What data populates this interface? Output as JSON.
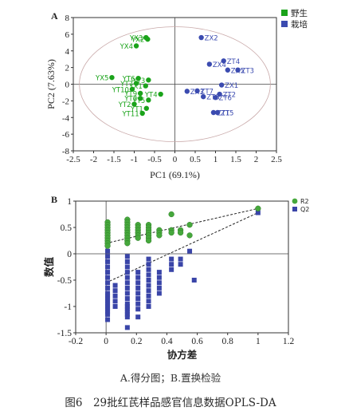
{
  "caption": {
    "sub": "A.得分图；B.置换检验",
    "main": "图6　29批红芪样品感官信息数据OPLS-DA"
  },
  "colors": {
    "wild": "#1aa31a",
    "cultivated": "#3b4bb0",
    "r2": "#46a83c",
    "q2": "#3a45a8",
    "ellipse": "#c9a9a9"
  },
  "chart_data": [
    {
      "type": "scatter",
      "panel_label": "A",
      "title": "",
      "xlabel": "PC1 (69.1%)",
      "ylabel": "PC2 (7.63%)",
      "xlim": [
        -2.5,
        2.5
      ],
      "ylim": [
        -8,
        8
      ],
      "xticks": [
        -2.5,
        -2,
        -1.5,
        -1,
        -0.5,
        0,
        0.5,
        1,
        1.5,
        2,
        2.5
      ],
      "xtick_labels": [
        "-2.5",
        "-2",
        "-1.5",
        "-1",
        "-0.5",
        "0",
        "0.5",
        "1",
        "1.5",
        "2",
        "2.5"
      ],
      "yticks": [
        -8,
        -6,
        -4,
        -2,
        0,
        2,
        4,
        6,
        8
      ],
      "ytick_labels": [
        "-8",
        "-6",
        "-4",
        "-2",
        "0",
        "2",
        "4",
        "6",
        "8"
      ],
      "legend_position": "top-right",
      "series": [
        {
          "name": "野生",
          "marker": "square",
          "points": [
            {
              "label": "YX3",
              "x": -0.71,
              "y": 5.6
            },
            {
              "label": "YX2",
              "x": -0.67,
              "y": 5.4
            },
            {
              "label": "YX4",
              "x": -0.95,
              "y": 4.6
            },
            {
              "label": "YX5",
              "x": -1.55,
              "y": 0.8
            },
            {
              "label": "YT6",
              "x": -0.9,
              "y": 0.7
            },
            {
              "label": "YT3",
              "x": -0.65,
              "y": 0.5
            },
            {
              "label": "YT7",
              "x": -0.95,
              "y": 0.1
            },
            {
              "label": "YX1",
              "x": -0.72,
              "y": -0.2
            },
            {
              "label": "YT10",
              "x": -1.05,
              "y": -0.6
            },
            {
              "label": "YT9",
              "x": -0.85,
              "y": -1.1
            },
            {
              "label": "YT4",
              "x": -0.35,
              "y": -1.2
            },
            {
              "label": "YT8",
              "x": -0.85,
              "y": -1.7
            },
            {
              "label": "YT5",
              "x": -0.65,
              "y": -1.9
            },
            {
              "label": "YT2",
              "x": -1.0,
              "y": -2.4
            },
            {
              "label": "YT1",
              "x": -0.7,
              "y": -2.9
            },
            {
              "label": "YT11",
              "x": -0.8,
              "y": -3.5
            }
          ]
        },
        {
          "name": "栽培",
          "marker": "circle",
          "points": [
            {
              "label": "ZX2",
              "x": 0.65,
              "y": 5.6
            },
            {
              "label": "ZT4",
              "x": 1.2,
              "y": 2.8
            },
            {
              "label": "ZX4",
              "x": 0.85,
              "y": 2.4
            },
            {
              "label": "ZX5",
              "x": 1.3,
              "y": 1.7
            },
            {
              "label": "ZT3",
              "x": 1.55,
              "y": 1.7
            },
            {
              "label": "ZX1",
              "x": 1.15,
              "y": -0.1
            },
            {
              "label": "ZT7",
              "x": 0.55,
              "y": -0.8
            },
            {
              "label": "ZX3",
              "x": 0.3,
              "y": -0.85
            },
            {
              "label": "ZT2",
              "x": 1.1,
              "y": -1.2
            },
            {
              "label": "ZT8",
              "x": 0.7,
              "y": -1.5
            },
            {
              "label": "ZT6",
              "x": 1.0,
              "y": -1.6
            },
            {
              "label": "ZT1",
              "x": 0.95,
              "y": -3.4
            },
            {
              "label": "ZT5",
              "x": 1.05,
              "y": -3.4
            }
          ]
        }
      ]
    },
    {
      "type": "scatter",
      "panel_label": "B",
      "title": "",
      "xlabel": "协方差",
      "ylabel": "数值",
      "xlim": [
        -0.2,
        1.2
      ],
      "ylim": [
        -1.5,
        1
      ],
      "xticks": [
        -0.2,
        0,
        0.2,
        0.4,
        0.6,
        0.8,
        1,
        1.2
      ],
      "xtick_labels": [
        "-0.2",
        "0",
        "0.2",
        "0.4",
        "0.6",
        "0.8",
        "1",
        "1.2"
      ],
      "yticks": [
        -1.5,
        -1,
        -0.5,
        0,
        0.5,
        1
      ],
      "ytick_labels": [
        "-1.5",
        "-1",
        "-0.5",
        "0",
        "0.5",
        "1"
      ],
      "legend_position": "top-right",
      "series": [
        {
          "name": "R2",
          "marker": "circle",
          "x": [
            0.01,
            0.01,
            0.01,
            0.01,
            0.01,
            0.01,
            0.01,
            0.01,
            0.01,
            0.01,
            0.14,
            0.14,
            0.14,
            0.14,
            0.14,
            0.14,
            0.14,
            0.14,
            0.14,
            0.14,
            0.21,
            0.21,
            0.21,
            0.21,
            0.21,
            0.21,
            0.28,
            0.28,
            0.28,
            0.28,
            0.28,
            0.28,
            0.28,
            0.35,
            0.35,
            0.35,
            0.43,
            0.43,
            0.43,
            0.49,
            0.49,
            0.55,
            0.55,
            1.0
          ],
          "values": [
            0.6,
            0.55,
            0.5,
            0.45,
            0.4,
            0.35,
            0.3,
            0.25,
            0.2,
            0.15,
            0.65,
            0.6,
            0.55,
            0.5,
            0.45,
            0.4,
            0.35,
            0.3,
            0.25,
            0.2,
            0.55,
            0.5,
            0.45,
            0.4,
            0.35,
            0.3,
            0.55,
            0.5,
            0.45,
            0.4,
            0.35,
            0.3,
            0.25,
            0.45,
            0.4,
            0.35,
            0.75,
            0.45,
            0.4,
            0.45,
            0.4,
            0.55,
            0.35,
            0.86
          ]
        },
        {
          "name": "Q2",
          "marker": "square",
          "x": [
            0.01,
            0.01,
            0.01,
            0.01,
            0.01,
            0.01,
            0.01,
            0.01,
            0.01,
            0.01,
            0.01,
            0.01,
            0.01,
            0.01,
            0.01,
            0.01,
            0.01,
            0.01,
            0.06,
            0.06,
            0.06,
            0.06,
            0.06,
            0.14,
            0.14,
            0.14,
            0.14,
            0.14,
            0.14,
            0.14,
            0.14,
            0.14,
            0.14,
            0.14,
            0.14,
            0.14,
            0.14,
            0.14,
            0.14,
            0.21,
            0.21,
            0.21,
            0.21,
            0.21,
            0.21,
            0.21,
            0.21,
            0.21,
            0.28,
            0.28,
            0.28,
            0.28,
            0.28,
            0.28,
            0.28,
            0.28,
            0.28,
            0.28,
            0.35,
            0.35,
            0.35,
            0.35,
            0.35,
            0.43,
            0.43,
            0.43,
            0.49,
            0.49,
            0.55,
            0.58,
            1.0
          ],
          "values": [
            -0.05,
            -0.15,
            -0.25,
            -0.35,
            -0.45,
            -0.55,
            -0.65,
            -0.75,
            -0.8,
            -0.85,
            -0.9,
            -0.95,
            -1.0,
            -1.05,
            -1.1,
            -1.15,
            -1.25,
            0.05,
            -0.6,
            -0.7,
            -0.8,
            -0.9,
            -1.0,
            -0.05,
            -0.15,
            -0.25,
            -0.35,
            -0.45,
            -0.55,
            -0.65,
            -0.75,
            -0.85,
            -0.95,
            -1.0,
            -1.05,
            -1.1,
            -1.15,
            -1.2,
            -1.4,
            -0.35,
            -0.45,
            -0.55,
            -0.65,
            -0.75,
            -0.85,
            -0.95,
            -1.05,
            -1.2,
            -0.1,
            -0.2,
            -0.3,
            -0.4,
            -0.5,
            -0.6,
            -0.7,
            -0.8,
            -0.9,
            -1.0,
            -0.35,
            -0.45,
            -0.55,
            -0.65,
            -0.75,
            -0.1,
            -0.2,
            -0.3,
            -0.1,
            -0.2,
            0.05,
            -0.5,
            0.78
          ]
        }
      ],
      "regression_lines": [
        {
          "series": "R2",
          "points": [
            [
              0.0,
              0.2
            ],
            [
              1.0,
              0.86
            ]
          ]
        },
        {
          "series": "Q2",
          "points": [
            [
              0.0,
              -0.55
            ],
            [
              1.0,
              0.78
            ]
          ]
        }
      ]
    }
  ]
}
